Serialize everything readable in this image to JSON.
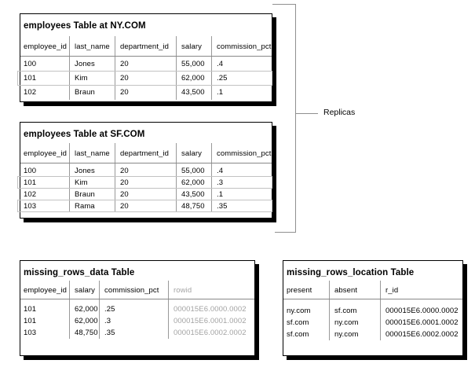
{
  "figure": {
    "annotation_label": "Replicas"
  },
  "colors": {
    "box_border": "#000000",
    "shadow": "#000000",
    "column_divider": "#999999",
    "header_underline": "#888888",
    "highlight_band": "#c2c2c2",
    "muted_text": "#a3a3a3",
    "bracket": "#909090",
    "background": "#ffffff",
    "text": "#000000"
  },
  "tables": [
    {
      "id": "employees-ny",
      "title": "employees Table at NY.COM",
      "columns": [
        "employee_id",
        "last_name",
        "department_id",
        "salary",
        "commission_pct"
      ],
      "rows": [
        [
          "100",
          "Jones",
          "20",
          "55,000",
          ".4"
        ],
        [
          "101",
          "Kim",
          "20",
          "62,000",
          ".25"
        ],
        [
          "102",
          "Braun",
          "20",
          "43,500",
          ".1"
        ]
      ],
      "highlighted_rows": [
        1
      ],
      "gray_columns": []
    },
    {
      "id": "employees-sf",
      "title": "employees Table at SF.COM",
      "columns": [
        "employee_id",
        "last_name",
        "department_id",
        "salary",
        "commission_pct"
      ],
      "rows": [
        [
          "100",
          "Jones",
          "20",
          "55,000",
          ".4"
        ],
        [
          "101",
          "Kim",
          "20",
          "62,000",
          ".3"
        ],
        [
          "102",
          "Braun",
          "20",
          "43,500",
          ".1"
        ],
        [
          "103",
          "Rama",
          "20",
          "48,750",
          ".35"
        ]
      ],
      "highlighted_rows": [
        1,
        3
      ],
      "gray_columns": []
    },
    {
      "id": "missing-rows-data",
      "title": "missing_rows_data Table",
      "columns": [
        "employee_id",
        "salary",
        "commission_pct",
        "rowid"
      ],
      "rows": [
        [
          "101",
          "62,000",
          ".25",
          "000015E6.0000.0002"
        ],
        [
          "101",
          "62,000",
          ".3",
          "000015E6.0001.0002"
        ],
        [
          "103",
          "48,750",
          ".35",
          "000015E6.0002.0002"
        ]
      ],
      "highlighted_rows": [],
      "gray_columns": [
        3
      ]
    },
    {
      "id": "missing-rows-location",
      "title": "missing_rows_location Table",
      "columns": [
        "present",
        "absent",
        "r_id"
      ],
      "rows": [
        [
          "ny.com",
          "sf.com",
          "000015E6.0000.0002"
        ],
        [
          "sf.com",
          "ny.com",
          "000015E6.0001.0002"
        ],
        [
          "sf.com",
          "ny.com",
          "000015E6.0002.0002"
        ]
      ],
      "highlighted_rows": [],
      "gray_columns": []
    }
  ]
}
